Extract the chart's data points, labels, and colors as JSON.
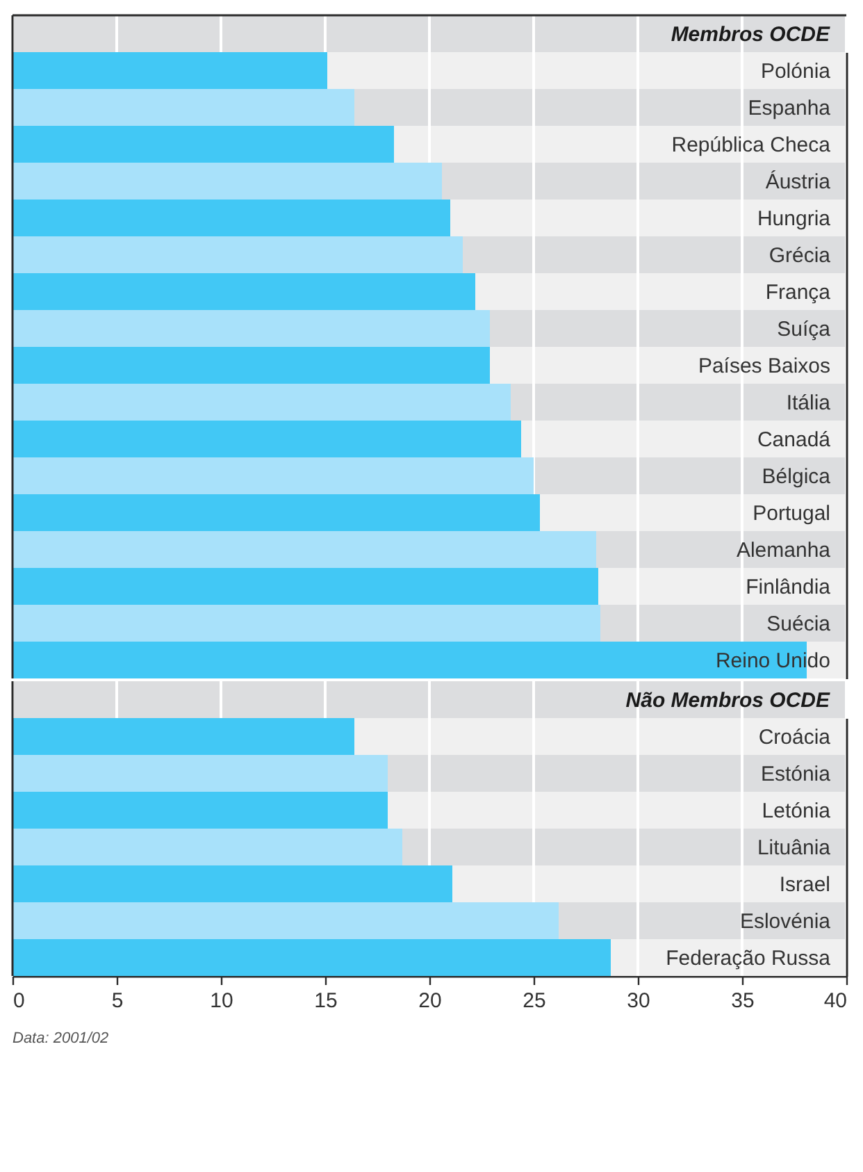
{
  "chart_data": [
    {
      "type": "bar",
      "orientation": "horizontal",
      "title": "Membros OCDE",
      "categories": [
        "Polónia",
        "Espanha",
        "República Checa",
        "Áustria",
        "Hungria",
        "Grécia",
        "França",
        "Suíça",
        "Países Baixos",
        "Itália",
        "Canadá",
        "Bélgica",
        "Portugal",
        "Alemanha",
        "Finlândia",
        "Suécia",
        "Reino Unido"
      ],
      "values": [
        15.1,
        16.4,
        18.3,
        20.6,
        21.0,
        21.6,
        22.2,
        22.9,
        22.9,
        23.9,
        24.4,
        25.0,
        25.3,
        28.0,
        28.1,
        28.2,
        38.1
      ],
      "colors": [
        "#42c8f5",
        "#a8e1fa",
        "#42c8f5",
        "#a8e1fa",
        "#42c8f5",
        "#a8e1fa",
        "#42c8f5",
        "#a8e1fa",
        "#42c8f5",
        "#a8e1fa",
        "#42c8f5",
        "#a8e1fa",
        "#42c8f5",
        "#a8e1fa",
        "#42c8f5",
        "#a8e1fa",
        "#42c8f5"
      ],
      "xlim": [
        0,
        40
      ],
      "xticks": [
        0,
        5,
        10,
        15,
        20,
        25,
        30,
        35,
        40
      ],
      "grid": "x",
      "tick_labels": "y"
    },
    {
      "type": "bar",
      "orientation": "horizontal",
      "title": "Não Membros OCDE",
      "categories": [
        "Croácia",
        "Estónia",
        "Letónia",
        "Lituânia",
        "Israel",
        "Eslovénia",
        "Federação Russa"
      ],
      "values": [
        16.4,
        18.0,
        18.0,
        18.7,
        21.1,
        26.2,
        28.7
      ],
      "colors": [
        "#42c8f5",
        "#a8e1fa",
        "#42c8f5",
        "#a8e1fa",
        "#42c8f5",
        "#a8e1fa",
        "#42c8f5"
      ],
      "xlim": [
        0,
        40
      ],
      "xticks": [
        0,
        5,
        10,
        15,
        20,
        25,
        30,
        35,
        40
      ],
      "grid": "x",
      "annotations": [
        "Data: 2001/02"
      ]
    }
  ]
}
